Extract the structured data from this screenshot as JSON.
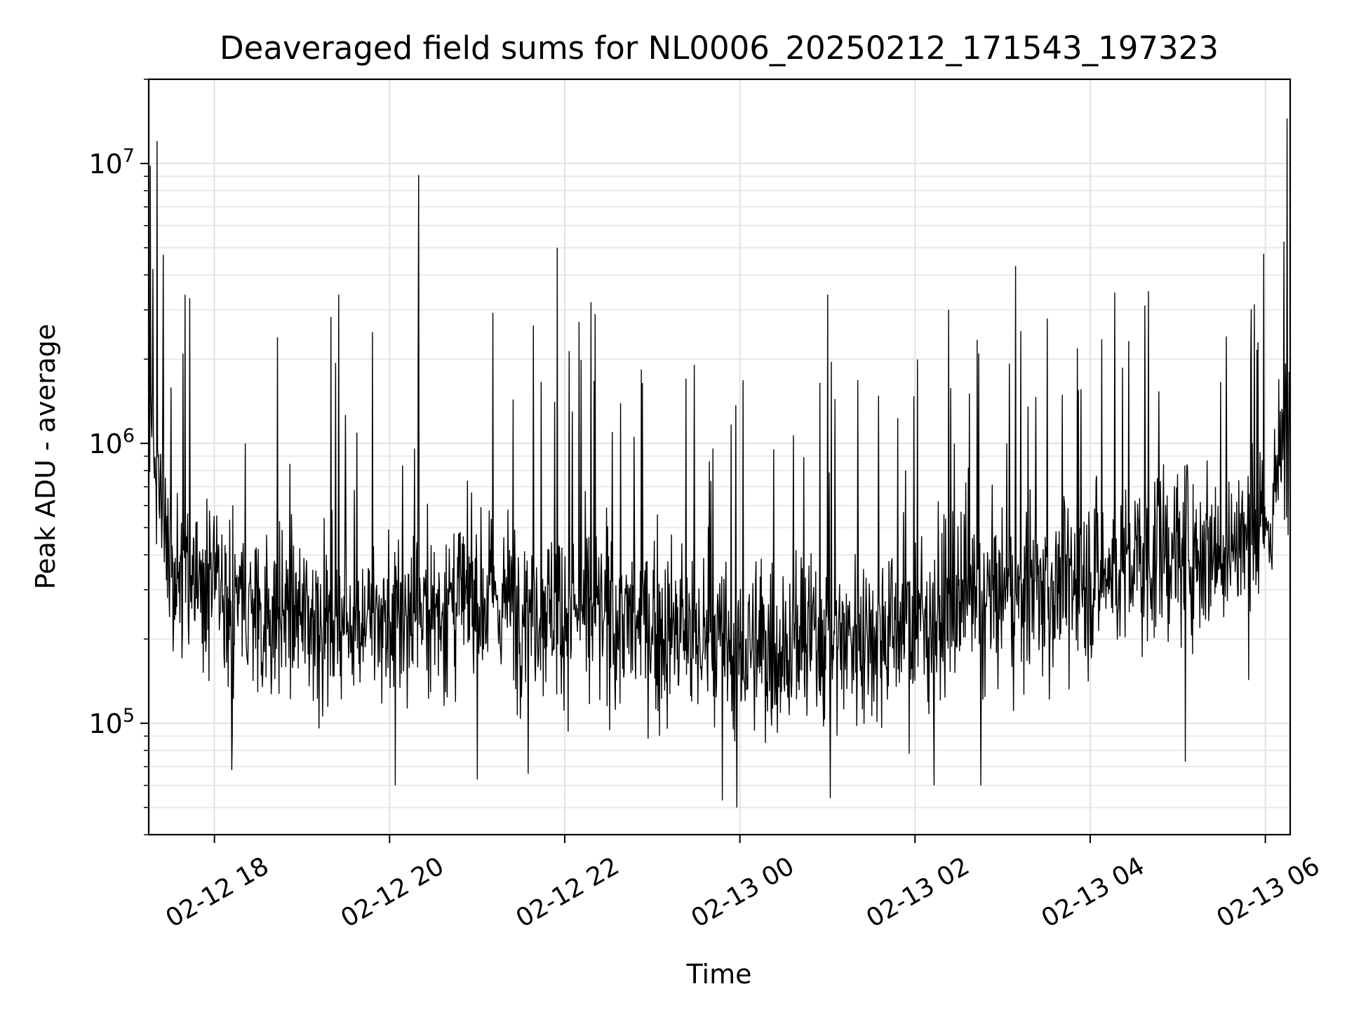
{
  "chart_data": {
    "type": "line",
    "title": "Deaveraged field sums for NL0006_20250212_171543_197323",
    "xlabel": "Time",
    "ylabel": "Peak ADU - average",
    "yscale": "log",
    "ylim": [
      40000,
      20000000
    ],
    "xlim": [
      "2025-02-12 17:15",
      "2025-02-13 06:17"
    ],
    "grid": true,
    "legend": "none",
    "line_color": "#000000",
    "x_ticks": [
      {
        "value": "2025-02-12 18:00",
        "label": "02-12 18"
      },
      {
        "value": "2025-02-12 20:00",
        "label": "02-12 20"
      },
      {
        "value": "2025-02-12 22:00",
        "label": "02-12 22"
      },
      {
        "value": "2025-02-13 00:00",
        "label": "02-13 00"
      },
      {
        "value": "2025-02-13 02:00",
        "label": "02-13 02"
      },
      {
        "value": "2025-02-13 04:00",
        "label": "02-13 04"
      },
      {
        "value": "2025-02-13 06:00",
        "label": "02-13 06"
      }
    ],
    "y_ticks": [
      {
        "value": 100000,
        "base": "10",
        "exp": "5"
      },
      {
        "value": 1000000,
        "base": "10",
        "exp": "6"
      },
      {
        "value": 10000000,
        "base": "10",
        "exp": "7"
      }
    ],
    "series": [
      {
        "baseline_trend": [
          {
            "x": "2025-02-12 17:15",
            "y": 1200000
          },
          {
            "x": "2025-02-12 17:30",
            "y": 350000
          },
          {
            "x": "2025-02-12 18:30",
            "y": 250000
          },
          {
            "x": "2025-02-12 20:00",
            "y": 230000
          },
          {
            "x": "2025-02-12 21:00",
            "y": 280000
          },
          {
            "x": "2025-02-12 22:00",
            "y": 260000
          },
          {
            "x": "2025-02-12 23:00",
            "y": 220000
          },
          {
            "x": "2025-02-13 00:00",
            "y": 180000
          },
          {
            "x": "2025-02-13 01:00",
            "y": 200000
          },
          {
            "x": "2025-02-13 02:00",
            "y": 230000
          },
          {
            "x": "2025-02-13 03:00",
            "y": 280000
          },
          {
            "x": "2025-02-13 04:00",
            "y": 330000
          },
          {
            "x": "2025-02-13 05:00",
            "y": 420000
          },
          {
            "x": "2025-02-13 06:00",
            "y": 450000
          },
          {
            "x": "2025-02-13 06:17",
            "y": 1300000
          }
        ],
        "peaks": [
          {
            "x": "2025-02-12 17:16",
            "y": 9800000
          },
          {
            "x": "2025-02-12 17:18",
            "y": 4200000
          },
          {
            "x": "2025-02-12 17:40",
            "y": 3400000
          },
          {
            "x": "2025-02-12 17:43",
            "y": 3300000
          },
          {
            "x": "2025-02-12 19:25",
            "y": 3400000
          },
          {
            "x": "2025-02-12 20:04",
            "y": 2000000
          },
          {
            "x": "2025-02-12 20:20",
            "y": 9100000
          },
          {
            "x": "2025-02-12 21:00",
            "y": 3000000
          },
          {
            "x": "2025-02-12 21:35",
            "y": 2900000
          },
          {
            "x": "2025-02-12 21:55",
            "y": 5000000
          },
          {
            "x": "2025-02-12 22:18",
            "y": 3200000
          },
          {
            "x": "2025-02-13 01:00",
            "y": 3400000
          },
          {
            "x": "2025-02-13 02:23",
            "y": 3000000
          },
          {
            "x": "2025-02-13 04:40",
            "y": 3500000
          },
          {
            "x": "2025-02-13 06:15",
            "y": 14500000
          }
        ],
        "troughs": [
          {
            "x": "2025-02-12 18:12",
            "y": 68000
          },
          {
            "x": "2025-02-12 20:04",
            "y": 60000
          },
          {
            "x": "2025-02-12 21:00",
            "y": 63000
          },
          {
            "x": "2025-02-12 21:35",
            "y": 66000
          },
          {
            "x": "2025-02-12 23:48",
            "y": 53000
          },
          {
            "x": "2025-02-12 23:58",
            "y": 50000
          },
          {
            "x": "2025-02-13 01:02",
            "y": 54000
          },
          {
            "x": "2025-02-13 02:13",
            "y": 60000
          },
          {
            "x": "2025-02-13 02:45",
            "y": 60000
          },
          {
            "x": "2025-02-13 05:05",
            "y": 73000
          }
        ]
      }
    ]
  }
}
